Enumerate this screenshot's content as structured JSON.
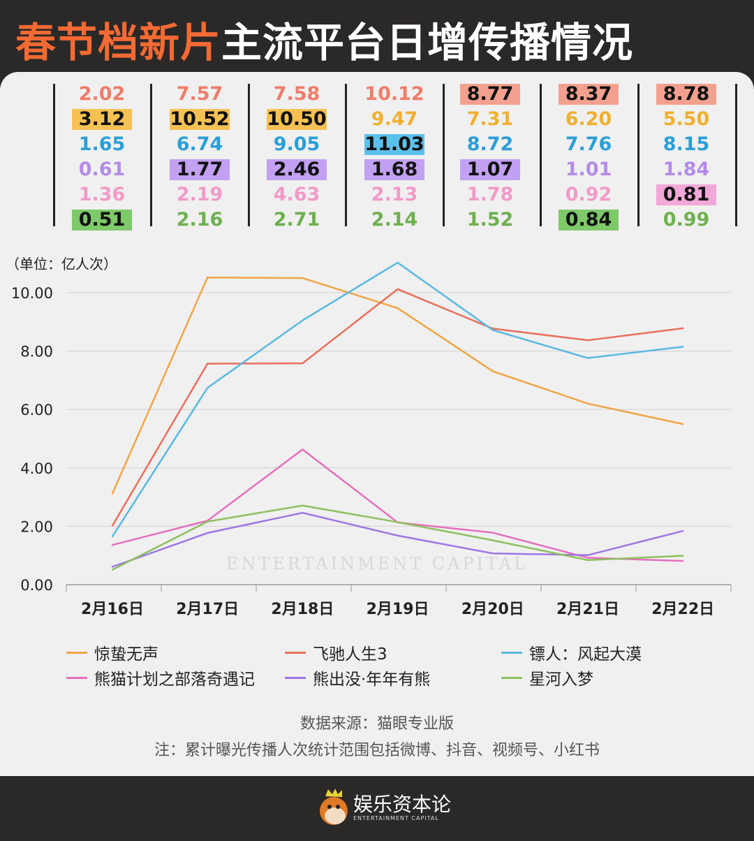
{
  "title": {
    "highlight": "春节档新片",
    "rest": "主流平台日增传播情况"
  },
  "table": {
    "row_series": [
      "飞驰人生3",
      "惊蛰无声",
      "镖人：风起大漠",
      "熊出没·年年有熊",
      "熊猫计划之部落奇遇记",
      "星河入梦"
    ],
    "columns": [
      {
        "values": [
          "2.02",
          "3.12",
          "1.65",
          "0.61",
          "1.36",
          "0.51"
        ],
        "highlighted": [
          1,
          5
        ]
      },
      {
        "values": [
          "7.57",
          "10.52",
          "6.74",
          "1.77",
          "2.19",
          "2.16"
        ],
        "highlighted": [
          1,
          3
        ]
      },
      {
        "values": [
          "7.58",
          "10.50",
          "9.05",
          "2.46",
          "4.63",
          "2.71"
        ],
        "highlighted": [
          1,
          3
        ]
      },
      {
        "values": [
          "10.12",
          "9.47",
          "11.03",
          "1.68",
          "2.13",
          "2.14"
        ],
        "highlighted": [
          2,
          3
        ]
      },
      {
        "values": [
          "8.77",
          "7.31",
          "8.72",
          "1.07",
          "1.78",
          "1.52"
        ],
        "highlighted": [
          0,
          3
        ]
      },
      {
        "values": [
          "8.37",
          "6.20",
          "7.76",
          "1.01",
          "0.92",
          "0.84"
        ],
        "highlighted": [
          0,
          5
        ]
      },
      {
        "values": [
          "8.78",
          "5.50",
          "8.15",
          "1.84",
          "0.81",
          "0.99"
        ],
        "highlighted": [
          0,
          4
        ]
      }
    ]
  },
  "chart_data": {
    "type": "line",
    "ylabel": "（单位：亿人次）",
    "categories": [
      "2月16日",
      "2月17日",
      "2月18日",
      "2月19日",
      "2月20日",
      "2月21日",
      "2月22日"
    ],
    "yticks": [
      "0.00",
      "2.00",
      "4.00",
      "6.00",
      "8.00",
      "10.00"
    ],
    "ylim": [
      0,
      10.6
    ],
    "grid": true,
    "legend_position": "bottom",
    "series": [
      {
        "name": "惊蛰无声",
        "color": "#f0a545",
        "values": [
          3.12,
          10.52,
          10.5,
          9.47,
          7.31,
          6.2,
          5.5
        ]
      },
      {
        "name": "飞驰人生3",
        "color": "#e9705b",
        "values": [
          2.02,
          7.57,
          7.58,
          10.12,
          8.77,
          8.37,
          8.78
        ]
      },
      {
        "name": "镖人：风起大漠",
        "color": "#5ab8e2",
        "values": [
          1.65,
          6.74,
          9.05,
          11.03,
          8.72,
          7.76,
          8.15
        ]
      },
      {
        "name": "熊猫计划之部落奇遇记",
        "color": "#e46fbd",
        "values": [
          1.36,
          2.19,
          4.63,
          2.13,
          1.78,
          0.92,
          0.81
        ]
      },
      {
        "name": "熊出没·年年有熊",
        "color": "#a175e3",
        "values": [
          0.61,
          1.77,
          2.46,
          1.68,
          1.07,
          1.01,
          1.84
        ]
      },
      {
        "name": "星河入梦",
        "color": "#8dc05f",
        "values": [
          0.51,
          2.16,
          2.71,
          2.14,
          1.52,
          0.84,
          0.99
        ]
      }
    ]
  },
  "row_colors": {
    "text": [
      "#ee7d6a",
      "#f0b030",
      "#2a9fd8",
      "#b48be8",
      "#f29ac8",
      "#6fb050"
    ],
    "highlight": [
      "#f4a08e",
      "#f5c152",
      "#5cc0ec",
      "#c2a0f2",
      "#f2a8d8",
      "#7ec96a"
    ]
  },
  "watermark": "ENTERTAINMENT CAPITAL",
  "footer": {
    "source": "数据来源：猫眼专业版",
    "note": "注：累计曝光传播人次统计范围包括微博、抖音、视频号、小红书"
  },
  "logo": {
    "name": "娱乐资本论",
    "sub": "ENTERTAINMENT CAPITAL"
  }
}
